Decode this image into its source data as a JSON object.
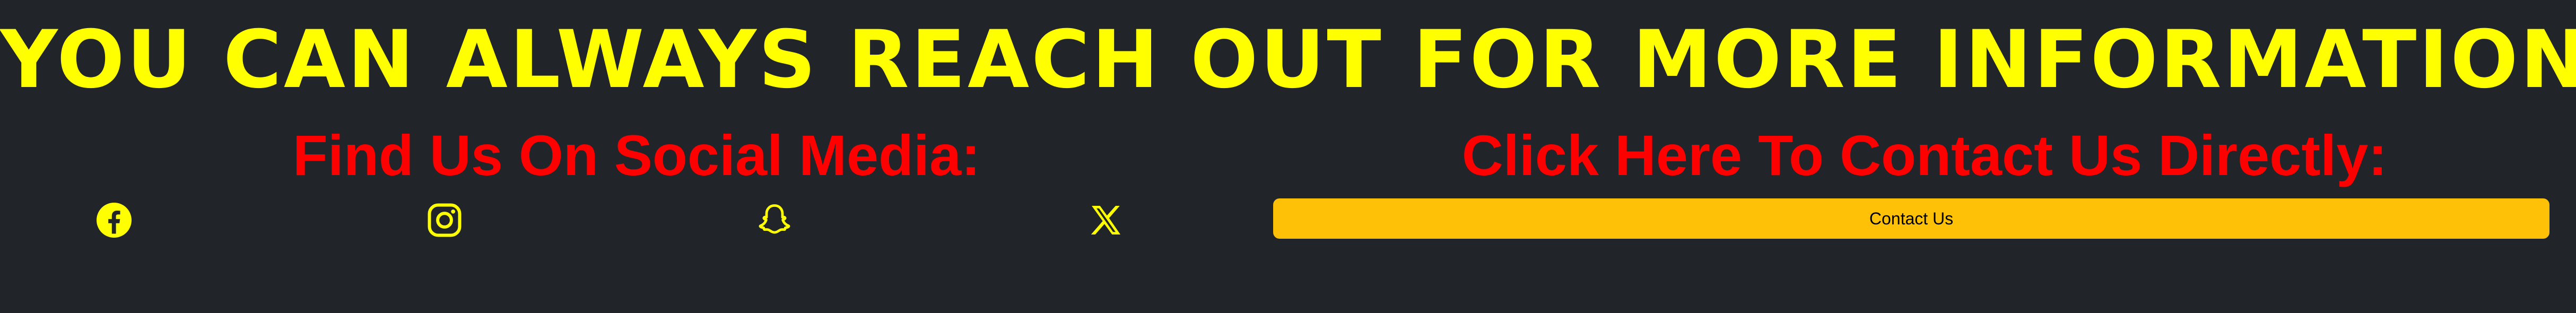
{
  "headline": "YOU CAN ALWAYS REACH OUT FOR MORE INFORMATION",
  "social": {
    "title": "Find Us On Social Media:",
    "icons": [
      {
        "name": "facebook-icon"
      },
      {
        "name": "instagram-icon"
      },
      {
        "name": "snapchat-icon"
      },
      {
        "name": "x-icon"
      }
    ]
  },
  "contact": {
    "title": "Click Here To Contact Us Directly:",
    "button_label": "Contact Us"
  },
  "colors": {
    "background": "#212529",
    "headline": "#ffff00",
    "section_title": "#ff0000",
    "icon": "#ffff00",
    "button": "#ffc107",
    "button_text": "#000000"
  }
}
